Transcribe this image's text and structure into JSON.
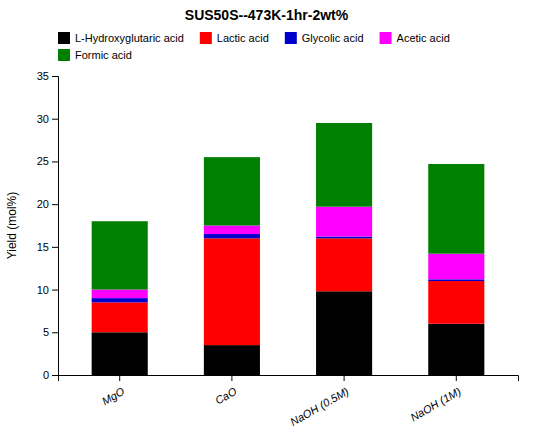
{
  "chart_data": {
    "type": "bar",
    "stacked": true,
    "title": "SUS50S--473K-1hr-2wt%",
    "y_label": "Yield (mol%)",
    "categories": [
      "MgO",
      "CaO",
      "NaOH (0.5M)",
      "NaOH (1M)"
    ],
    "series": [
      {
        "name": "L-Hydroxyglutaric acid",
        "color": "#000000",
        "values": [
          5.0,
          3.5,
          9.8,
          6.0
        ]
      },
      {
        "name": "Lactic acid",
        "color": "#ff0000",
        "values": [
          3.5,
          12.5,
          6.2,
          5.0
        ]
      },
      {
        "name": "Glycolic acid",
        "color": "#0000cc",
        "values": [
          0.5,
          0.5,
          0.2,
          0.2
        ]
      },
      {
        "name": "Acetic acid",
        "color": "#ff00ff",
        "values": [
          1.0,
          1.0,
          3.5,
          3.0
        ]
      },
      {
        "name": "Formic acid",
        "color": "#008000",
        "values": [
          8.0,
          8.0,
          9.8,
          10.5
        ]
      }
    ],
    "ylim": [
      0,
      35
    ],
    "yticks": [
      0,
      5,
      10,
      15,
      20,
      25,
      30,
      35
    ],
    "legend": "upper left",
    "grid": false
  }
}
